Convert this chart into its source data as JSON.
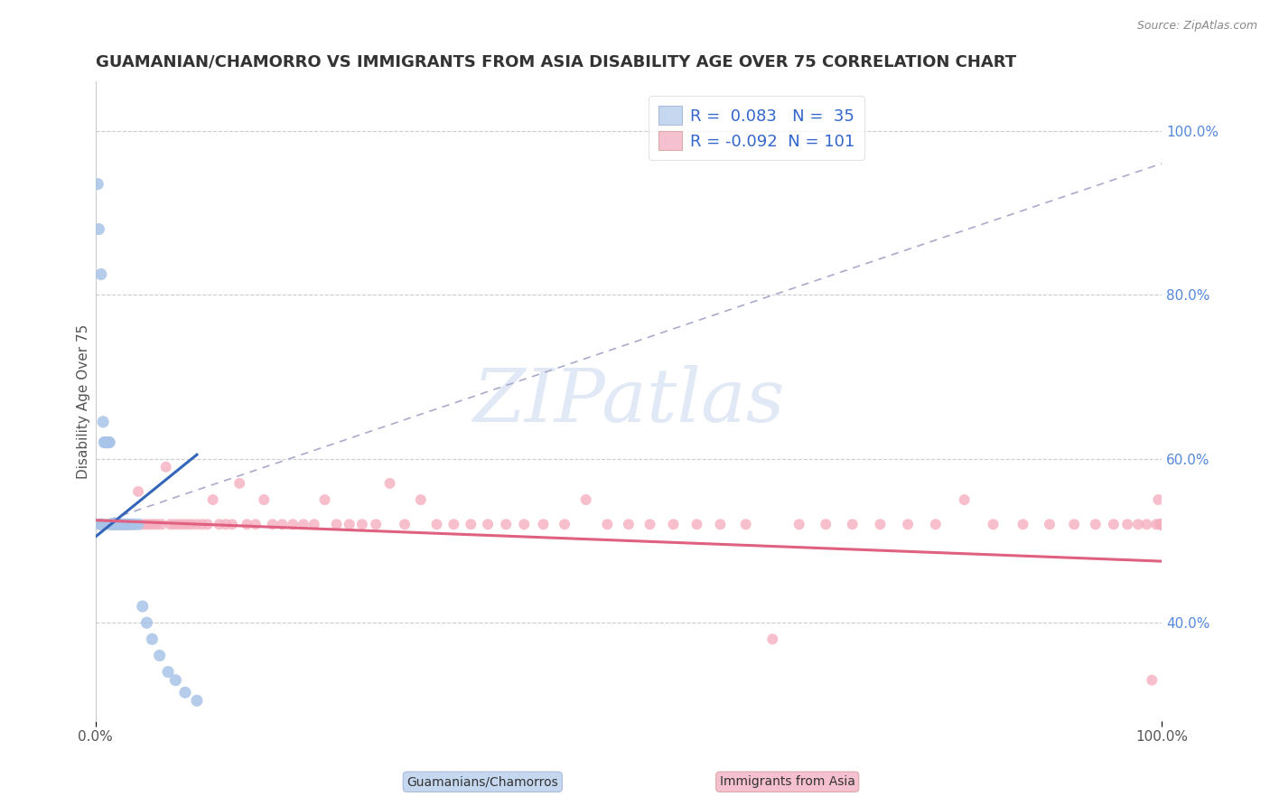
{
  "title": "GUAMANIAN/CHAMORRO VS IMMIGRANTS FROM ASIA DISABILITY AGE OVER 75 CORRELATION CHART",
  "source": "Source: ZipAtlas.com",
  "ylabel": "Disability Age Over 75",
  "legend_label1": "Guamanians/Chamorros",
  "legend_label2": "Immigrants from Asia",
  "R1": 0.083,
  "N1": 35,
  "R2": -0.092,
  "N2": 101,
  "blue_dot_color": "#a8c4e8",
  "blue_line_color": "#3366bb",
  "pink_dot_color": "#f5b0c0",
  "pink_line_color": "#e06080",
  "legend_box_blue": "#c5d8f0",
  "legend_box_pink": "#f5c0d0",
  "watermark": "ZIPatlas",
  "xlim": [
    0.0,
    1.0
  ],
  "ylim": [
    0.28,
    1.06
  ],
  "right_yticks": [
    0.4,
    0.6,
    0.8,
    1.0
  ],
  "right_yticklabels": [
    "40.0%",
    "60.0%",
    "80.0%",
    "100.0%"
  ],
  "blue_x": [
    0.002,
    0.003,
    0.004,
    0.005,
    0.006,
    0.007,
    0.008,
    0.009,
    0.01,
    0.011,
    0.012,
    0.013,
    0.014,
    0.015,
    0.016,
    0.017,
    0.018,
    0.019,
    0.02,
    0.022,
    0.024,
    0.026,
    0.028,
    0.03,
    0.033,
    0.036,
    0.04,
    0.044,
    0.048,
    0.053,
    0.06,
    0.068,
    0.075,
    0.084,
    0.095
  ],
  "blue_y": [
    0.935,
    0.88,
    0.52,
    0.825,
    0.52,
    0.645,
    0.62,
    0.62,
    0.62,
    0.62,
    0.62,
    0.62,
    0.52,
    0.52,
    0.52,
    0.52,
    0.52,
    0.52,
    0.52,
    0.52,
    0.52,
    0.52,
    0.52,
    0.52,
    0.52,
    0.52,
    0.52,
    0.42,
    0.4,
    0.38,
    0.36,
    0.34,
    0.33,
    0.315,
    0.305
  ],
  "pink_x": [
    0.004,
    0.006,
    0.008,
    0.01,
    0.012,
    0.014,
    0.016,
    0.018,
    0.02,
    0.022,
    0.025,
    0.028,
    0.031,
    0.034,
    0.037,
    0.04,
    0.043,
    0.046,
    0.049,
    0.052,
    0.055,
    0.058,
    0.062,
    0.066,
    0.07,
    0.074,
    0.078,
    0.082,
    0.086,
    0.09,
    0.095,
    0.1,
    0.105,
    0.11,
    0.116,
    0.122,
    0.128,
    0.135,
    0.142,
    0.15,
    0.158,
    0.166,
    0.175,
    0.185,
    0.195,
    0.205,
    0.215,
    0.226,
    0.238,
    0.25,
    0.263,
    0.276,
    0.29,
    0.305,
    0.32,
    0.336,
    0.352,
    0.368,
    0.385,
    0.402,
    0.42,
    0.44,
    0.46,
    0.48,
    0.5,
    0.52,
    0.542,
    0.564,
    0.586,
    0.61,
    0.635,
    0.66,
    0.685,
    0.71,
    0.736,
    0.762,
    0.788,
    0.815,
    0.842,
    0.87,
    0.895,
    0.918,
    0.938,
    0.955,
    0.968,
    0.978,
    0.986,
    0.991,
    0.995,
    0.997,
    0.998,
    0.999,
    0.9993,
    0.9996,
    0.9998,
    0.9999,
    0.99995,
    0.99998,
    0.99999,
    0.999995,
    0.999999
  ],
  "pink_y": [
    0.52,
    0.52,
    0.52,
    0.52,
    0.52,
    0.52,
    0.52,
    0.52,
    0.52,
    0.52,
    0.52,
    0.52,
    0.52,
    0.52,
    0.52,
    0.56,
    0.52,
    0.52,
    0.52,
    0.52,
    0.52,
    0.52,
    0.52,
    0.59,
    0.52,
    0.52,
    0.52,
    0.52,
    0.52,
    0.52,
    0.52,
    0.52,
    0.52,
    0.55,
    0.52,
    0.52,
    0.52,
    0.57,
    0.52,
    0.52,
    0.55,
    0.52,
    0.52,
    0.52,
    0.52,
    0.52,
    0.55,
    0.52,
    0.52,
    0.52,
    0.52,
    0.57,
    0.52,
    0.55,
    0.52,
    0.52,
    0.52,
    0.52,
    0.52,
    0.52,
    0.52,
    0.52,
    0.55,
    0.52,
    0.52,
    0.52,
    0.52,
    0.52,
    0.52,
    0.52,
    0.38,
    0.52,
    0.52,
    0.52,
    0.52,
    0.52,
    0.52,
    0.55,
    0.52,
    0.52,
    0.52,
    0.52,
    0.52,
    0.52,
    0.52,
    0.52,
    0.52,
    0.33,
    0.52,
    0.55,
    0.52,
    0.52,
    0.52,
    0.52,
    0.52,
    0.52,
    0.52,
    0.52,
    0.52,
    0.52,
    0.52
  ],
  "blue_line_x": [
    0.0,
    0.095
  ],
  "blue_line_y": [
    0.505,
    0.605
  ],
  "pink_line_x": [
    0.0,
    1.0
  ],
  "pink_line_y": [
    0.525,
    0.475
  ],
  "dash_line_x": [
    0.0,
    1.0
  ],
  "dash_line_y": [
    0.52,
    0.96
  ],
  "title_fontsize": 13,
  "source_fontsize": 9,
  "axis_label_fontsize": 11,
  "tick_fontsize": 11,
  "legend_fontsize": 13
}
